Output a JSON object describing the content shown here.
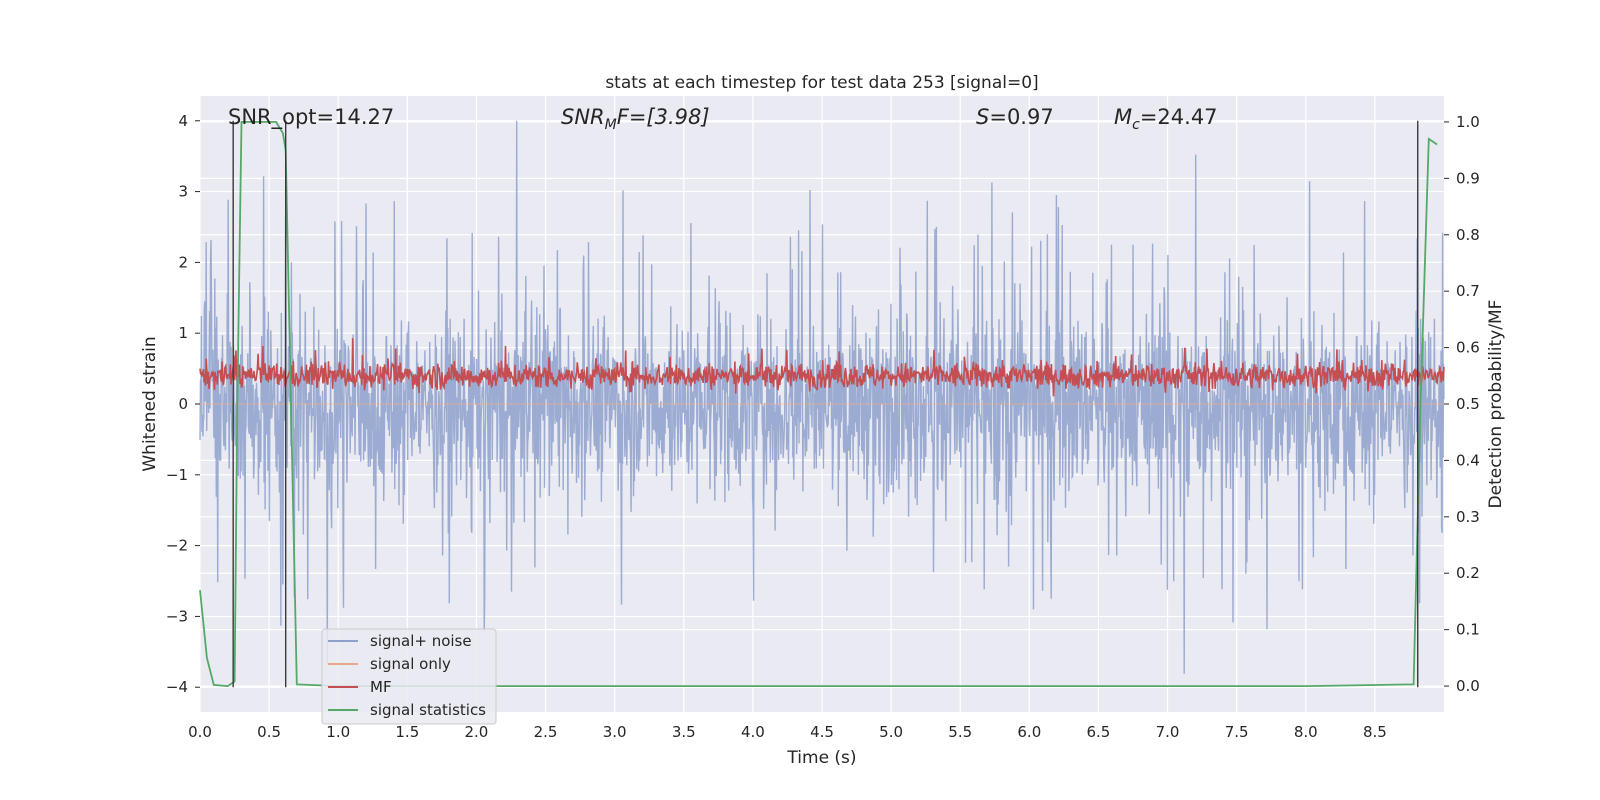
{
  "chart_data": {
    "type": "line",
    "title": "stats at each timestep for test data 253 [signal=0]",
    "xlabel": "Time (s)",
    "ylabel": "Whitened strain",
    "ylabel_right": "Detection probability/MF",
    "xlim": [
      0.0,
      9.0
    ],
    "ylim": [
      -4.35,
      4.35
    ],
    "ylim_right": [
      -0.046,
      1.046
    ],
    "xticks": [
      0.0,
      0.5,
      1.0,
      1.5,
      2.0,
      2.5,
      3.0,
      3.5,
      4.0,
      4.5,
      5.0,
      5.5,
      6.0,
      6.5,
      7.0,
      7.5,
      8.0,
      8.5
    ],
    "xtick_labels": [
      "0.0",
      "0.5",
      "1.0",
      "1.5",
      "2.0",
      "2.5",
      "3.0",
      "3.5",
      "4.0",
      "4.5",
      "5.0",
      "5.5",
      "6.0",
      "6.5",
      "7.0",
      "7.5",
      "8.0",
      "8.5"
    ],
    "yticks": [
      -4,
      -3,
      -2,
      -1,
      0,
      1,
      2,
      3,
      4
    ],
    "ytick_labels": [
      "−4",
      "−3",
      "−2",
      "−1",
      "0",
      "1",
      "2",
      "3",
      "4"
    ],
    "yticks_right": [
      0.0,
      0.1,
      0.2,
      0.3,
      0.4,
      0.5,
      0.6,
      0.7,
      0.8,
      0.9,
      1.0
    ],
    "ytick_labels_right": [
      "0.0",
      "0.1",
      "0.2",
      "0.3",
      "0.4",
      "0.5",
      "0.6",
      "0.7",
      "0.8",
      "0.9",
      "1.0"
    ],
    "grid": true,
    "legend_position": "lower-left",
    "annotations": {
      "snr_opt": "SNR_opt=14.27",
      "snr_mf_main": "SNR",
      "snr_mf_sub": "M",
      "snr_mf_rest": "F=[3.98]",
      "s_main": "S",
      "s_rest": "=0.97",
      "mc_main": "M",
      "mc_sub": "c",
      "mc_rest": "=24.47"
    },
    "series": [
      {
        "name": "signal+ noise",
        "color": "#8da0cb",
        "axis": "left",
        "description_values": {
          "x_start": 0.0,
          "x_end": 9.0,
          "typical_range": [
            -2.0,
            2.5
          ],
          "max": 4.0,
          "min": -4.0
        }
      },
      {
        "name": "signal only",
        "color": "#e8a98b",
        "axis": "left",
        "values_note": "flat (signal=0)"
      },
      {
        "name": "MF",
        "color": "#c44e52",
        "axis": "right",
        "description_values": {
          "x_start": 0.0,
          "x_end": 9.0,
          "typical_range": [
            0.52,
            0.58
          ],
          "max": 0.63,
          "min": 0.5
        }
      },
      {
        "name": "signal statistics",
        "color": "#55a868",
        "axis": "right",
        "x": [
          0.0,
          0.05,
          0.1,
          0.2,
          0.25,
          0.27,
          0.3,
          0.55,
          0.6,
          0.62,
          0.7,
          1.0,
          2.0,
          3.0,
          4.0,
          5.0,
          6.0,
          7.0,
          8.0,
          8.78,
          8.83,
          8.89,
          8.95
        ],
        "y": [
          0.17,
          0.05,
          0.002,
          0.0,
          0.008,
          0.5,
          1.0,
          1.0,
          0.98,
          0.95,
          0.003,
          0.0,
          0.0,
          0.0,
          0.0,
          0.0,
          0.0,
          0.0,
          0.0,
          0.003,
          0.5,
          0.97,
          0.96
        ]
      }
    ],
    "vertical_markers": {
      "color": "#3a3a3a",
      "segments": [
        {
          "x": 0.24,
          "y_from": -4.0,
          "y_to": 4.0
        },
        {
          "x": 0.62,
          "y_from": -4.0,
          "y_to": 4.0
        },
        {
          "x": 8.81,
          "y_from": -4.0,
          "y_to": 4.0
        }
      ]
    }
  },
  "legend": {
    "items": [
      {
        "label": "signal+ noise",
        "color": "#8da0cb"
      },
      {
        "label": "signal only",
        "color": "#e8a98b"
      },
      {
        "label": "MF",
        "color": "#c44e52"
      },
      {
        "label": "signal statistics",
        "color": "#55a868"
      }
    ]
  }
}
